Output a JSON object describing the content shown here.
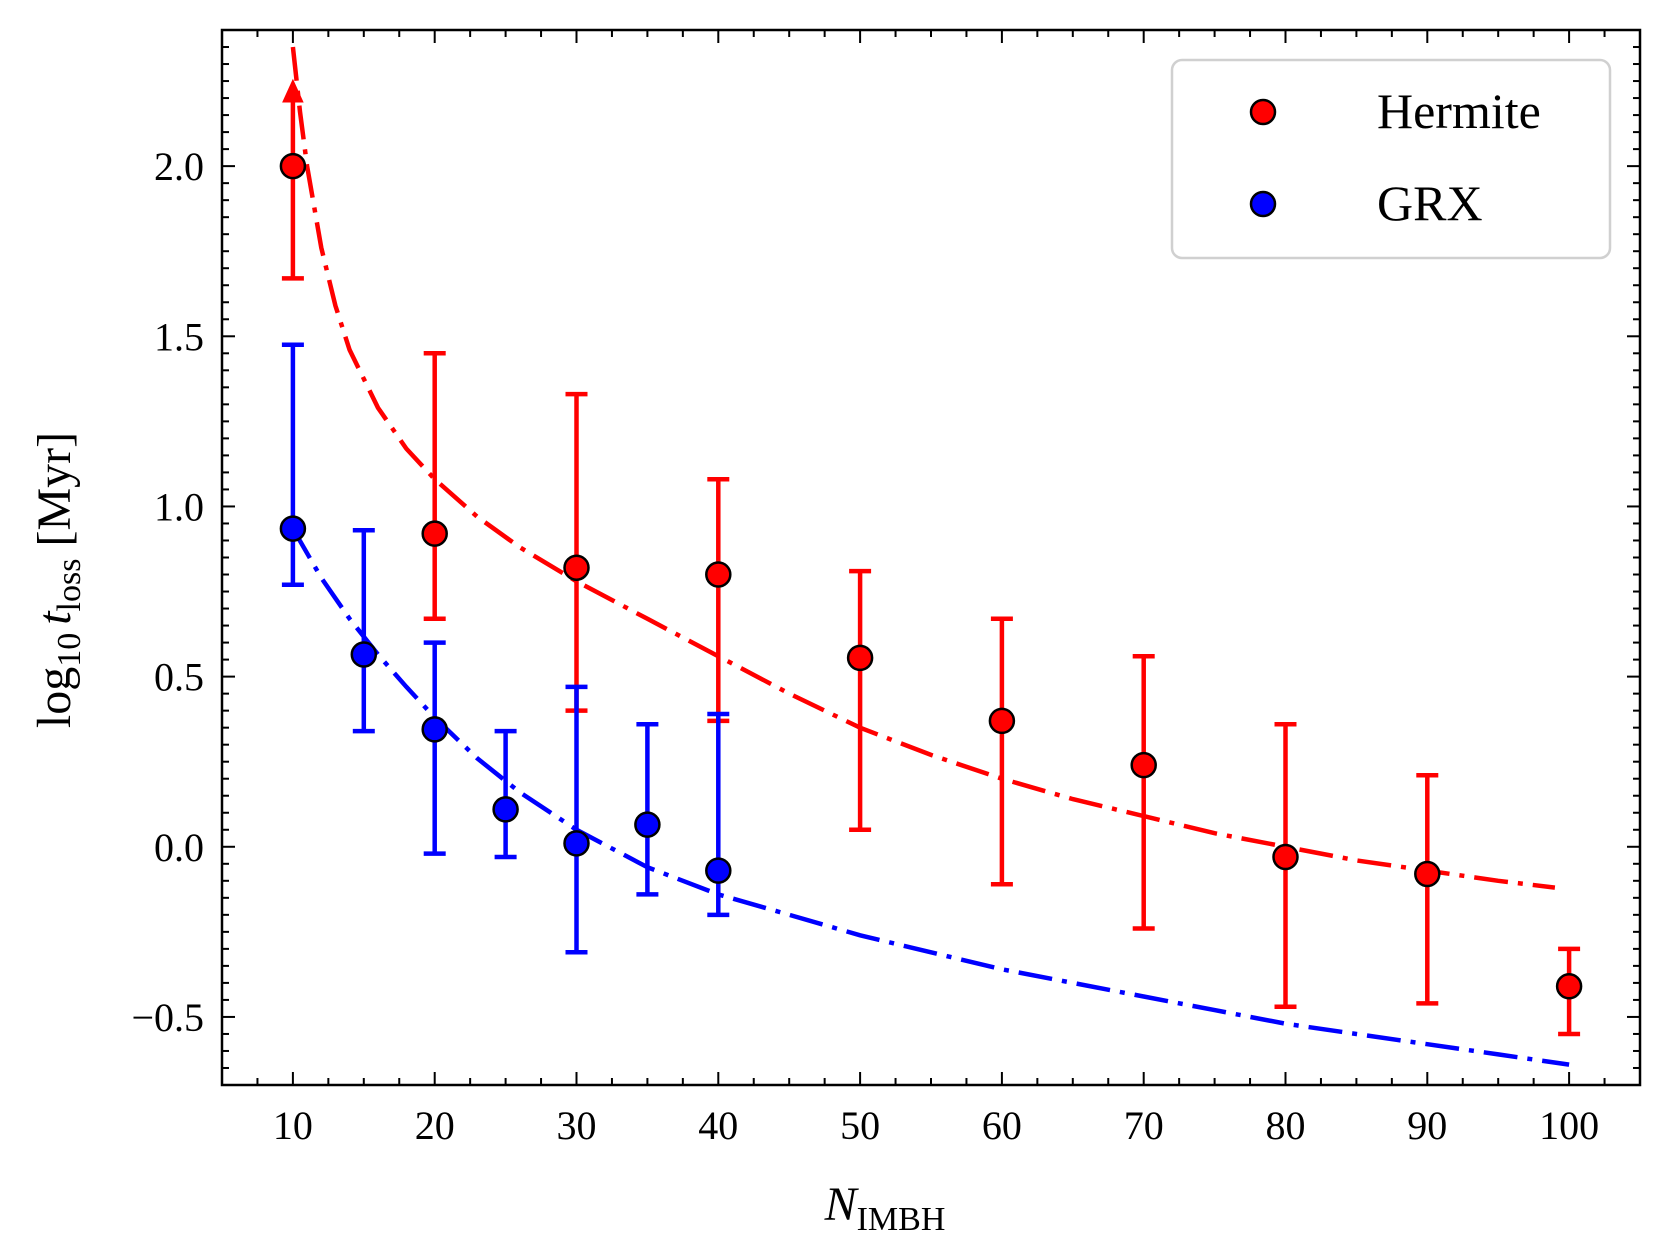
{
  "chart_data": {
    "type": "scatter",
    "title": "",
    "xlabel_main": "N",
    "xlabel_sub": "IMBH",
    "ylabel_pre": "log",
    "ylabel_pre_sub": "10",
    "ylabel_var": "t",
    "ylabel_var_sub": "loss",
    "ylabel_unit": "[Myr]",
    "xlim": [
      5,
      105
    ],
    "ylim": [
      -0.7,
      2.4
    ],
    "xticks": [
      10,
      20,
      30,
      40,
      50,
      60,
      70,
      80,
      90,
      100
    ],
    "xtick_labels": [
      "10",
      "20",
      "30",
      "40",
      "50",
      "60",
      "70",
      "80",
      "90",
      "100"
    ],
    "yticks": [
      -0.5,
      0.0,
      0.5,
      1.0,
      1.5,
      2.0
    ],
    "ytick_labels": [
      "−0.5",
      "0.0",
      "0.5",
      "1.0",
      "1.5",
      "2.0"
    ],
    "legend_position": "top-right",
    "grid": false,
    "series": [
      {
        "name": "Hermite",
        "color": "#ff0000",
        "points": [
          {
            "x": 10,
            "y": 2.0,
            "lo": 1.67,
            "hi": 2.0,
            "upper_limit": true
          },
          {
            "x": 20,
            "y": 0.92,
            "lo": 0.67,
            "hi": 1.45
          },
          {
            "x": 30,
            "y": 0.82,
            "lo": 0.4,
            "hi": 1.33
          },
          {
            "x": 40,
            "y": 0.8,
            "lo": 0.37,
            "hi": 1.08
          },
          {
            "x": 50,
            "y": 0.555,
            "lo": 0.05,
            "hi": 0.81
          },
          {
            "x": 60,
            "y": 0.37,
            "lo": -0.11,
            "hi": 0.67
          },
          {
            "x": 70,
            "y": 0.24,
            "lo": -0.24,
            "hi": 0.56
          },
          {
            "x": 80,
            "y": -0.03,
            "lo": -0.47,
            "hi": 0.36
          },
          {
            "x": 90,
            "y": -0.08,
            "lo": -0.46,
            "hi": 0.21
          },
          {
            "x": 100,
            "y": -0.41,
            "lo": -0.55,
            "hi": -0.3
          }
        ],
        "fit": {
          "x": [
            10,
            10.5,
            11,
            12,
            13,
            14,
            16,
            18,
            20,
            23,
            26,
            30,
            35,
            40,
            45,
            50,
            55,
            60,
            65,
            70,
            75,
            80,
            85,
            90,
            95,
            99
          ],
          "y": [
            2.35,
            2.16,
            2.0,
            1.76,
            1.59,
            1.46,
            1.29,
            1.17,
            1.08,
            0.97,
            0.88,
            0.78,
            0.67,
            0.56,
            0.45,
            0.35,
            0.27,
            0.2,
            0.14,
            0.09,
            0.04,
            0.0,
            -0.04,
            -0.07,
            -0.1,
            -0.12
          ]
        }
      },
      {
        "name": "GRX",
        "color": "#0000ff",
        "points": [
          {
            "x": 10,
            "y": 0.935,
            "lo": 0.77,
            "hi": 1.475
          },
          {
            "x": 15,
            "y": 0.565,
            "lo": 0.34,
            "hi": 0.93
          },
          {
            "x": 20,
            "y": 0.345,
            "lo": -0.02,
            "hi": 0.6
          },
          {
            "x": 25,
            "y": 0.11,
            "lo": -0.03,
            "hi": 0.34
          },
          {
            "x": 30,
            "y": 0.01,
            "lo": -0.31,
            "hi": 0.47
          },
          {
            "x": 35,
            "y": 0.065,
            "lo": -0.14,
            "hi": 0.36
          },
          {
            "x": 40,
            "y": -0.07,
            "lo": -0.2,
            "hi": 0.39
          }
        ],
        "fit": {
          "x": [
            10,
            12,
            14,
            16,
            18,
            20,
            23,
            26,
            30,
            35,
            40,
            45,
            50,
            55,
            60,
            65,
            70,
            75,
            80,
            85,
            90,
            95,
            100
          ],
          "y": [
            0.935,
            0.79,
            0.67,
            0.565,
            0.47,
            0.38,
            0.26,
            0.16,
            0.05,
            -0.06,
            -0.14,
            -0.2,
            -0.26,
            -0.31,
            -0.36,
            -0.4,
            -0.44,
            -0.48,
            -0.52,
            -0.55,
            -0.58,
            -0.61,
            -0.64
          ]
        }
      }
    ]
  }
}
